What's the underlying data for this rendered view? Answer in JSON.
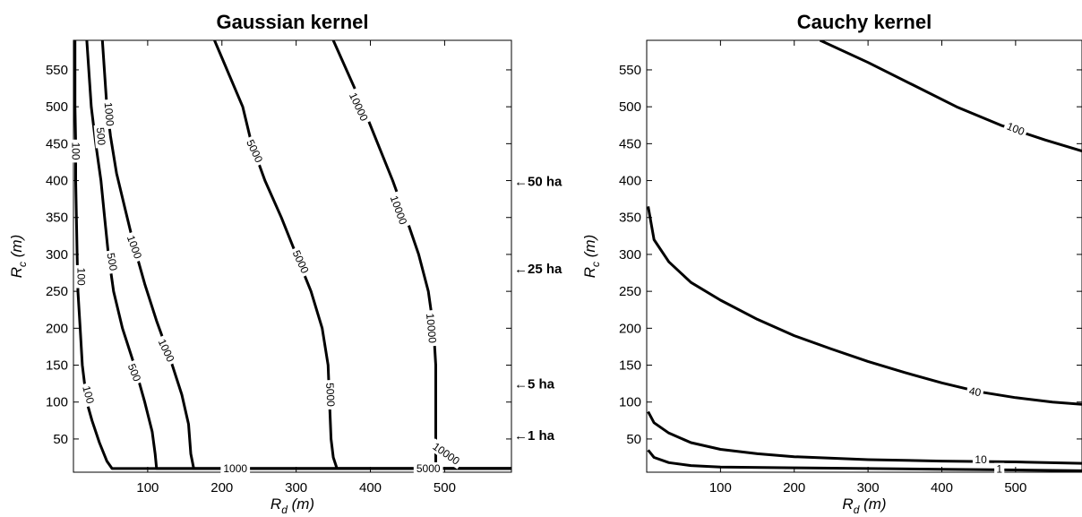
{
  "chart_data": [
    {
      "type": "contour",
      "title": "Gaussian kernel",
      "xlabel": "R_d (m)",
      "ylabel": "R_c (m)",
      "xlim": [
        0,
        590
      ],
      "ylim": [
        5,
        590
      ],
      "xticks": [
        100,
        200,
        300,
        400,
        500
      ],
      "yticks": [
        50,
        100,
        150,
        200,
        250,
        300,
        350,
        400,
        450,
        500,
        550
      ],
      "grid": false,
      "right_annotations": [
        {
          "label": "←50 ha",
          "y": 400
        },
        {
          "label": "←25 ha",
          "y": 282
        },
        {
          "label": "←5 ha",
          "y": 126
        },
        {
          "label": "←1 ha",
          "y": 56
        }
      ],
      "series": [
        {
          "name": "100",
          "points": [
            [
              590,
              10
            ],
            [
              52,
              10
            ],
            [
              45,
              20
            ],
            [
              35,
              45
            ],
            [
              25,
              75
            ],
            [
              18,
              100
            ],
            [
              12,
              150
            ],
            [
              9,
              200
            ],
            [
              6,
              250
            ],
            [
              5,
              300
            ],
            [
              4,
              350
            ],
            [
              3,
              400
            ],
            [
              3,
              450
            ],
            [
              2,
              500
            ],
            [
              2,
              590
            ]
          ]
        },
        {
          "name": "500",
          "points": [
            [
              590,
              10
            ],
            [
              112,
              10
            ],
            [
              110,
              30
            ],
            [
              106,
              60
            ],
            [
              96,
              100
            ],
            [
              82,
              150
            ],
            [
              66,
              200
            ],
            [
              54,
              250
            ],
            [
              47,
              300
            ],
            [
              42,
              350
            ],
            [
              37,
              400
            ],
            [
              30,
              450
            ],
            [
              24,
              500
            ],
            [
              18,
              590
            ]
          ]
        },
        {
          "name": "1000",
          "points": [
            [
              590,
              10
            ],
            [
              162,
              10
            ],
            [
              158,
              30
            ],
            [
              155,
              70
            ],
            [
              146,
              110
            ],
            [
              130,
              160
            ],
            [
              112,
              210
            ],
            [
              96,
              260
            ],
            [
              82,
              310
            ],
            [
              70,
              360
            ],
            [
              58,
              410
            ],
            [
              50,
              460
            ],
            [
              45,
              500
            ],
            [
              39,
              590
            ]
          ]
        },
        {
          "name": "5000",
          "points": [
            [
              590,
              10
            ],
            [
              355,
              10
            ],
            [
              350,
              25
            ],
            [
              347,
              50
            ],
            [
              345,
              100
            ],
            [
              343,
              150
            ],
            [
              335,
              200
            ],
            [
              320,
              250
            ],
            [
              300,
              300
            ],
            [
              280,
              350
            ],
            [
              258,
              400
            ],
            [
              240,
              450
            ],
            [
              228,
              500
            ],
            [
              190,
              590
            ]
          ]
        },
        {
          "name": "10000",
          "points": [
            [
              590,
              10
            ],
            [
              488,
              10
            ],
            [
              488,
              40
            ],
            [
              488,
              90
            ],
            [
              488,
              150
            ],
            [
              485,
              200
            ],
            [
              478,
              250
            ],
            [
              465,
              300
            ],
            [
              448,
              350
            ],
            [
              430,
              400
            ],
            [
              410,
              450
            ],
            [
              390,
              500
            ],
            [
              350,
              590
            ]
          ]
        }
      ],
      "labels": [
        {
          "text": "100",
          "x": 3,
          "y": 440,
          "rot": 90
        },
        {
          "text": "100",
          "x": 10,
          "y": 270,
          "rot": 90
        },
        {
          "text": "100",
          "x": 20,
          "y": 110,
          "rot": 75
        },
        {
          "text": "500",
          "x": 37,
          "y": 460,
          "rot": 85
        },
        {
          "text": "500",
          "x": 52,
          "y": 290,
          "rot": 80
        },
        {
          "text": "500",
          "x": 82,
          "y": 140,
          "rot": 68
        },
        {
          "text": "1000",
          "x": 48,
          "y": 490,
          "rot": 85
        },
        {
          "text": "1000",
          "x": 82,
          "y": 310,
          "rot": 70
        },
        {
          "text": "1000",
          "x": 125,
          "y": 170,
          "rot": 65
        },
        {
          "text": "1000",
          "x": 218,
          "y": 10,
          "rot": 0
        },
        {
          "text": "5000",
          "x": 244,
          "y": 440,
          "rot": 65
        },
        {
          "text": "5000",
          "x": 306,
          "y": 290,
          "rot": 65
        },
        {
          "text": "5000",
          "x": 346,
          "y": 110,
          "rot": 87
        },
        {
          "text": "5000",
          "x": 478,
          "y": 10,
          "rot": 0
        },
        {
          "text": "10000",
          "x": 384,
          "y": 500,
          "rot": 65
        },
        {
          "text": "10000",
          "x": 438,
          "y": 360,
          "rot": 70
        },
        {
          "text": "10000",
          "x": 482,
          "y": 200,
          "rot": 85
        },
        {
          "text": "10000",
          "x": 502,
          "y": 30,
          "rot": 35
        }
      ]
    },
    {
      "type": "contour",
      "title": "Cauchy kernel",
      "xlabel": "R_d (m)",
      "ylabel": "R_c (m)",
      "xlim": [
        0,
        590
      ],
      "ylim": [
        5,
        590
      ],
      "xticks": [
        100,
        200,
        300,
        400,
        500
      ],
      "yticks": [
        50,
        100,
        150,
        200,
        250,
        300,
        350,
        400,
        450,
        500,
        550
      ],
      "grid": false,
      "series": [
        {
          "name": "100",
          "points": [
            [
              235,
              590
            ],
            [
              300,
              560
            ],
            [
              360,
              530
            ],
            [
              420,
              500
            ],
            [
              480,
              475
            ],
            [
              540,
              455
            ],
            [
              590,
              440
            ]
          ]
        },
        {
          "name": "40",
          "points": [
            [
              2,
              365
            ],
            [
              10,
              320
            ],
            [
              30,
              290
            ],
            [
              60,
              262
            ],
            [
              100,
              238
            ],
            [
              150,
              212
            ],
            [
              200,
              190
            ],
            [
              250,
              172
            ],
            [
              300,
              155
            ],
            [
              350,
              140
            ],
            [
              400,
              126
            ],
            [
              450,
              114
            ],
            [
              500,
              106
            ],
            [
              550,
              100
            ],
            [
              590,
              97
            ]
          ]
        },
        {
          "name": "10",
          "points": [
            [
              2,
              87
            ],
            [
              10,
              72
            ],
            [
              30,
              58
            ],
            [
              60,
              45
            ],
            [
              100,
              36
            ],
            [
              150,
              30
            ],
            [
              200,
              26
            ],
            [
              300,
              22
            ],
            [
              400,
              20
            ],
            [
              500,
              19
            ],
            [
              590,
              17
            ]
          ]
        },
        {
          "name": "1",
          "points": [
            [
              2,
              35
            ],
            [
              10,
              25
            ],
            [
              30,
              18
            ],
            [
              60,
              14
            ],
            [
              100,
              12
            ],
            [
              200,
              11
            ],
            [
              300,
              10
            ],
            [
              400,
              9
            ],
            [
              500,
              8
            ],
            [
              590,
              7
            ]
          ]
        }
      ],
      "labels": [
        {
          "text": "100",
          "x": 500,
          "y": 470,
          "rot": 22
        },
        {
          "text": "40",
          "x": 445,
          "y": 114,
          "rot": 10
        },
        {
          "text": "10",
          "x": 453,
          "y": 22,
          "rot": 0
        },
        {
          "text": "1",
          "x": 478,
          "y": 9,
          "rot": 0
        }
      ]
    }
  ]
}
